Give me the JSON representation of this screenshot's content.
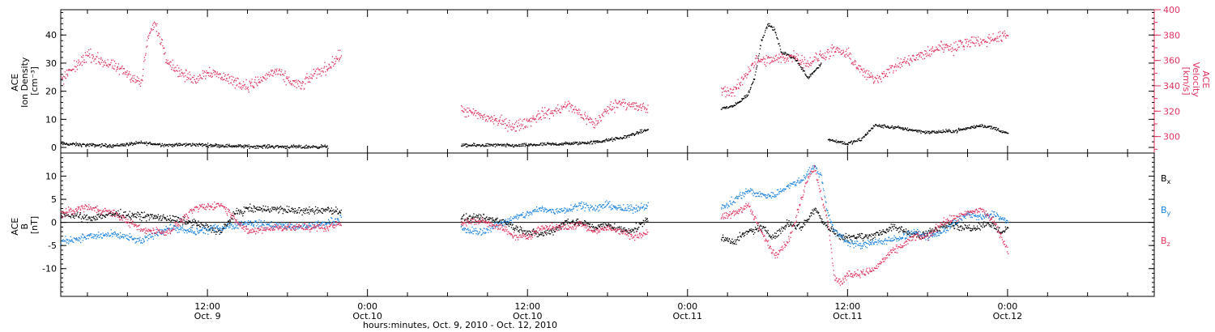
{
  "colors": {
    "black": "#000000",
    "pink": "#e0325e",
    "blue": "#1a82e0",
    "axis": "#000000"
  },
  "x_axis": {
    "title": "hours:minutes, Oct. 9, 2010 - Oct. 12, 2010",
    "major_ticks": [
      {
        "t": 12,
        "time": "12:00",
        "date": "Oct. 9"
      },
      {
        "t": 24,
        "time": "0:00",
        "date": "Oct.10"
      },
      {
        "t": 36,
        "time": "12:00",
        "date": "Oct.10"
      },
      {
        "t": 48,
        "time": "0:00",
        "date": "Oct.11"
      },
      {
        "t": 60,
        "time": "12:00",
        "date": "Oct.11"
      },
      {
        "t": 72,
        "time": "0:00",
        "date": "Oct.12"
      }
    ]
  },
  "chart_data": [
    {
      "type": "scatter",
      "panel": "top",
      "ylabel_lines": [
        "ACE",
        "Ion Density",
        "[cm⁻³]"
      ],
      "ylabel_right_lines": [
        "ACE",
        "Velocity",
        "[km/s]"
      ],
      "xlim": [
        1,
        83
      ],
      "ylim": [
        -2,
        49
      ],
      "y2lim": [
        287,
        400
      ],
      "yticks": [
        0,
        10,
        20,
        30,
        40
      ],
      "y2ticks": [
        300,
        320,
        340,
        360,
        380,
        400
      ],
      "series": [
        {
          "axis": "left",
          "color": "black",
          "segments": [
            {
              "t": [
                1,
                3,
                5,
                7,
                9,
                11,
                13,
                15,
                17,
                19,
                21
              ],
              "y": [
                1.5,
                1,
                0.8,
                1.8,
                1,
                1.2,
                0.8,
                0.5,
                0.5,
                0.3,
                0.5
              ]
            },
            {
              "t": [
                31,
                33,
                35,
                37,
                39,
                41,
                43,
                45
              ],
              "y": [
                0.8,
                1,
                0.8,
                1.2,
                1.5,
                2,
                3.5,
                6.5
              ]
            },
            {
              "t": [
                50.5,
                51.5,
                52.5,
                53,
                53.5,
                54,
                54.5,
                55,
                56,
                57,
                58
              ],
              "y": [
                14,
                15,
                19,
                25,
                38,
                44,
                42,
                34,
                32,
                25,
                30
              ]
            },
            {
              "t": [
                58.5,
                60,
                61,
                62,
                64,
                66,
                68,
                70,
                71,
                72
              ],
              "y": [
                3,
                1.5,
                3,
                8,
                7,
                5.5,
                6,
                8,
                7,
                5
              ]
            }
          ]
        },
        {
          "axis": "right",
          "color": "pink",
          "segments": [
            {
              "t": [
                1,
                2,
                3,
                4,
                5,
                6,
                7,
                7.5,
                8,
                9,
                10,
                11,
                12,
                13,
                14,
                15,
                16,
                17,
                18,
                19,
                20,
                21,
                22
              ],
              "v": [
                345,
                355,
                365,
                360,
                355,
                350,
                342,
                378,
                390,
                360,
                350,
                345,
                352,
                348,
                344,
                340,
                345,
                352,
                345,
                340,
                350,
                355,
                365
              ]
            },
            {
              "t": [
                31,
                32,
                33,
                34,
                35,
                36,
                37,
                38,
                39,
                40,
                41,
                42,
                43,
                44,
                45
              ],
              "v": [
                321,
                318,
                315,
                312,
                308,
                312,
                318,
                320,
                325,
                318,
                310,
                322,
                328,
                324,
                322
              ]
            },
            {
              "t": [
                50.5,
                51.5,
                52,
                52.5,
                53,
                54,
                55,
                56,
                57,
                58,
                59,
                60,
                61,
                62,
                63,
                64,
                65,
                66,
                67,
                68,
                69,
                70,
                71,
                72
              ],
              "v": [
                336,
                336,
                344,
                352,
                360,
                360,
                362,
                364,
                358,
                364,
                368,
                365,
                352,
                345,
                352,
                358,
                362,
                366,
                372,
                370,
                376,
                375,
                378,
                380
              ]
            }
          ]
        }
      ]
    },
    {
      "type": "scatter",
      "panel": "bottom",
      "ylabel_lines": [
        "ACE",
        "B",
        "[nT]"
      ],
      "xlim": [
        1,
        83
      ],
      "ylim": [
        -16,
        15
      ],
      "yticks": [
        -10,
        -5,
        0,
        5,
        10
      ],
      "zero_line": true,
      "legend": [
        "Bx",
        "By",
        "Bz"
      ],
      "series": [
        {
          "name": "Bx",
          "color": "black",
          "segments": [
            {
              "t": [
                1,
                3,
                5,
                7,
                9,
                11,
                13,
                14,
                15,
                17,
                19,
                21,
                22
              ],
              "y": [
                2,
                1,
                2,
                1.5,
                1,
                0,
                -2,
                2,
                3,
                3,
                2.5,
                2.8,
                2.5
              ]
            },
            {
              "t": [
                31,
                32.5,
                34,
                35,
                36,
                37,
                38,
                39,
                40,
                41,
                42,
                43,
                44,
                45
              ],
              "y": [
                1,
                1,
                0.5,
                -1,
                -2,
                -2.5,
                -1.5,
                0.5,
                0,
                -1,
                -0.5,
                -1.5,
                -1.5,
                1
              ]
            },
            {
              "t": [
                50.5,
                51.5,
                52.5,
                53.5,
                54.5,
                55.5,
                56.5,
                57.5,
                58.5,
                59.5,
                60.5,
                61.5,
                62.5,
                63.5,
                64.5,
                65.5,
                66.5,
                67.5,
                68.5,
                69.5,
                70.5,
                71.5,
                72
              ],
              "y": [
                -3.5,
                -4,
                -2,
                -1,
                -3,
                0,
                -1,
                3,
                -1,
                -3,
                -3,
                -3,
                -2,
                -1,
                -2,
                -3,
                -1.5,
                0,
                -1,
                -1,
                0,
                -2,
                -1
              ]
            }
          ]
        },
        {
          "name": "By",
          "color": "blue",
          "segments": [
            {
              "t": [
                1,
                3,
                5,
                7,
                9,
                11,
                13,
                15,
                17,
                19,
                21,
                22
              ],
              "y": [
                -4,
                -3,
                -2.5,
                -4,
                -1,
                -2,
                -1,
                0,
                -0.5,
                -1,
                0,
                1
              ]
            },
            {
              "t": [
                31,
                32.5,
                34,
                35,
                36,
                37,
                38,
                39,
                40,
                41,
                42,
                43,
                44,
                45
              ],
              "y": [
                -1.5,
                -2,
                0,
                1,
                2,
                3,
                2.5,
                3,
                4,
                3,
                4,
                3,
                3,
                4
              ]
            },
            {
              "t": [
                50.5,
                51.5,
                52.5,
                53.5,
                54.5,
                55.5,
                56.5,
                57,
                57.5,
                58,
                58.5,
                59,
                59.5,
                60,
                61,
                62,
                63,
                64,
                65,
                66,
                67,
                68,
                69,
                70,
                71,
                72
              ],
              "y": [
                3,
                5,
                7,
                6,
                6,
                8,
                9,
                11,
                12,
                10,
                2,
                -2,
                -3,
                -4,
                -5,
                -4,
                -4,
                -3,
                -2,
                -3,
                -2,
                0,
                2,
                1,
                2,
                0
              ]
            }
          ]
        },
        {
          "name": "Bz",
          "color": "pink",
          "segments": [
            {
              "t": [
                1,
                3,
                5,
                7,
                9,
                11,
                13,
                15,
                17,
                19,
                21,
                22
              ],
              "y": [
                2,
                3.5,
                2,
                -1.5,
                -2,
                3,
                4,
                -2,
                -1,
                -1,
                -1,
                0
              ]
            },
            {
              "t": [
                31,
                32.5,
                34,
                35,
                36,
                37,
                38,
                39,
                40,
                41,
                42,
                43,
                44,
                45
              ],
              "y": [
                0,
                0.5,
                -1,
                -3,
                -3,
                -1,
                -1,
                -1,
                0,
                -2,
                -1,
                -2,
                -3,
                -2
              ]
            },
            {
              "t": [
                50.5,
                51.5,
                52.5,
                53.5,
                54.5,
                55.5,
                56,
                57,
                57.5,
                58,
                58.5,
                59,
                59.5,
                60,
                61,
                62,
                63,
                64,
                65,
                66,
                67,
                68,
                69,
                70,
                71,
                72
              ],
              "y": [
                1,
                2,
                4,
                -2,
                -7,
                -4,
                0,
                10,
                12,
                6,
                0,
                -12,
                -13,
                -11,
                -11,
                -10,
                -7,
                -5,
                -3,
                -3,
                0,
                1,
                2,
                3,
                0,
                -6
              ]
            }
          ]
        }
      ]
    }
  ]
}
